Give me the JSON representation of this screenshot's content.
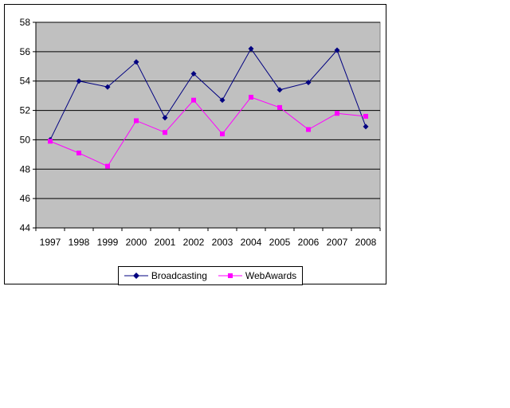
{
  "chart_data": {
    "type": "line",
    "title": "",
    "xlabel": "",
    "ylabel": "",
    "categories": [
      "1997",
      "1998",
      "1999",
      "2000",
      "2001",
      "2002",
      "2003",
      "2004",
      "2005",
      "2006",
      "2007",
      "2008"
    ],
    "ylim": [
      44,
      58
    ],
    "yticks": [
      "44",
      "46",
      "48",
      "50",
      "52",
      "54",
      "56",
      "58"
    ],
    "grid": true,
    "plot_background": "#c0c0c0",
    "legend_position": "bottom",
    "series": [
      {
        "name": "Broadcasting",
        "color": "#000080",
        "marker": "diamond",
        "values": [
          50.0,
          54.0,
          53.6,
          55.3,
          51.5,
          54.5,
          52.7,
          56.2,
          53.4,
          53.9,
          56.1,
          50.9
        ]
      },
      {
        "name": "WebAwards",
        "color": "#ff00ff",
        "marker": "square",
        "values": [
          49.9,
          49.1,
          48.2,
          51.3,
          50.5,
          52.7,
          50.4,
          52.9,
          52.2,
          50.7,
          51.8,
          51.6
        ]
      }
    ]
  }
}
